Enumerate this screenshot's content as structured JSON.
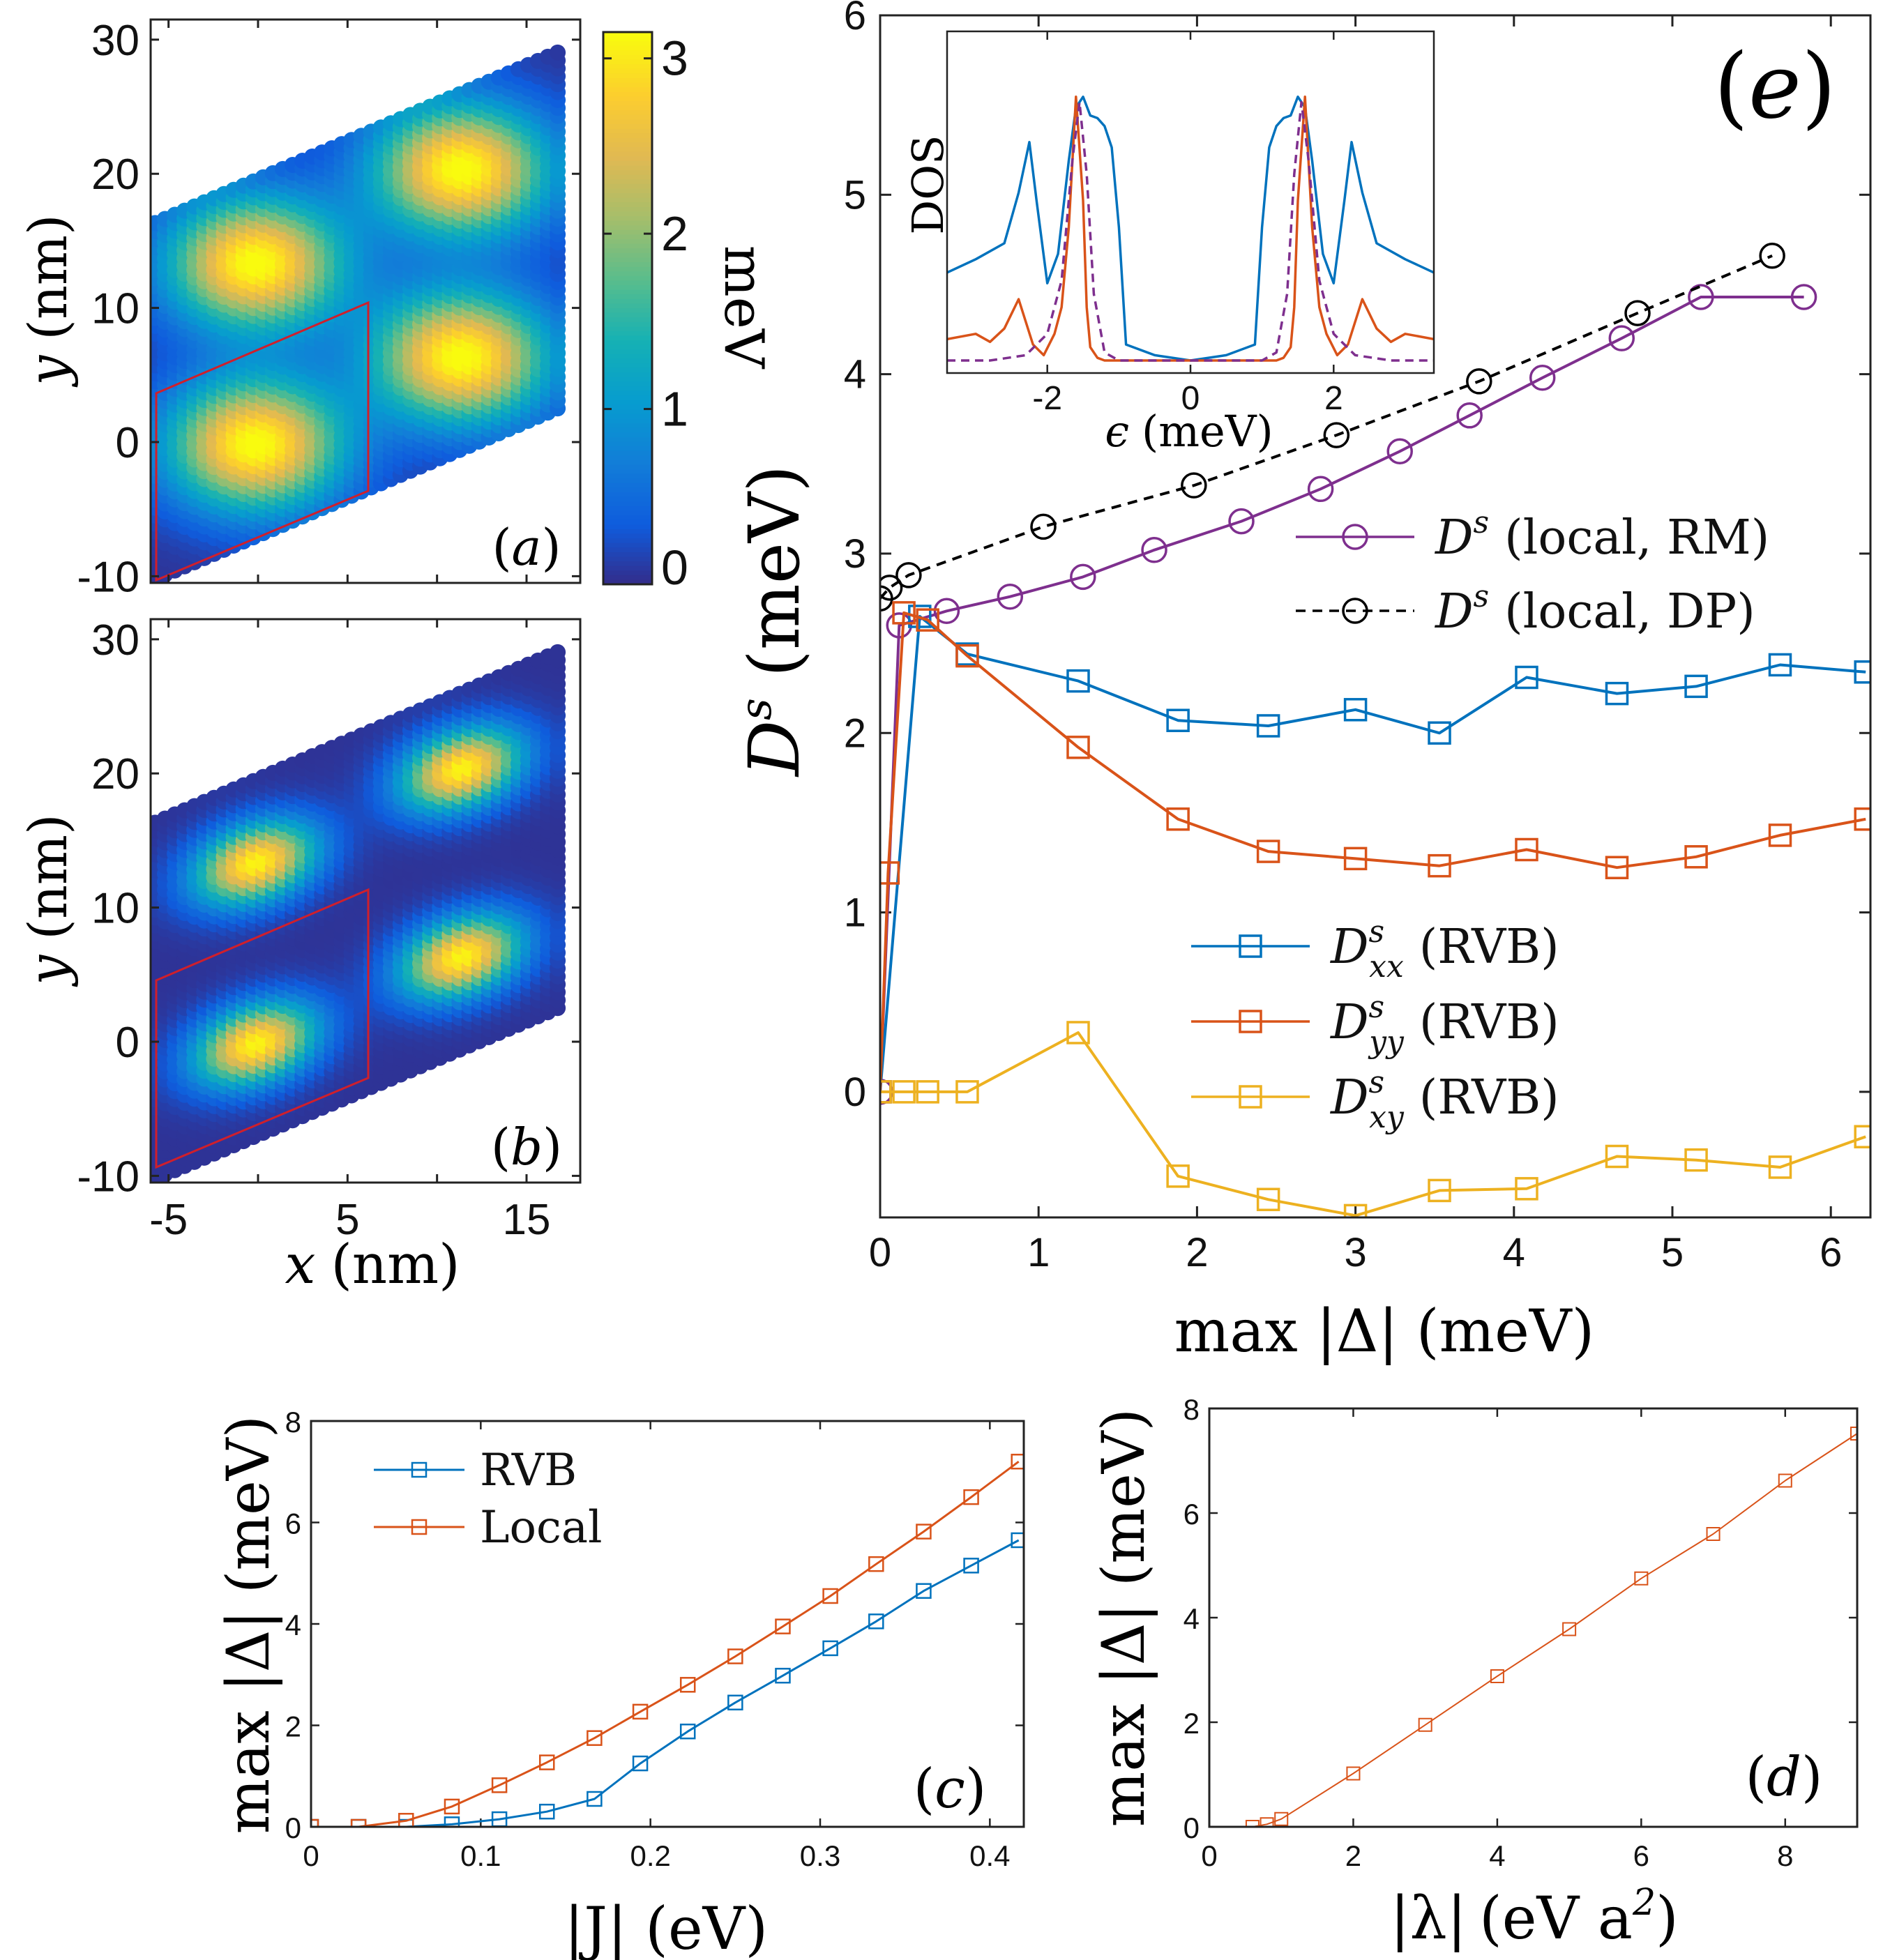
{
  "panels": {
    "a": {
      "letter": "a",
      "xticks": [],
      "yticks": [
        "30",
        "20",
        "10",
        "0",
        "-10"
      ],
      "ylabel_var": "y",
      "ylabel_unit": "(nm)",
      "colorbar": {
        "ticks": [
          "3",
          "2",
          "1",
          "0"
        ],
        "range": [
          0,
          3.15
        ],
        "label": "meV",
        "colormap": "parula"
      },
      "peaks": [
        {
          "x": 0,
          "y": 0,
          "amp": 3.15
        },
        {
          "x": 11.5,
          "y": 6.5,
          "amp": 3.15
        },
        {
          "x": 0,
          "y": 13.5,
          "amp": 3.15
        },
        {
          "x": 11.5,
          "y": 20.5,
          "amp": 3.15
        }
      ]
    },
    "b": {
      "letter": "b",
      "xticks": [
        "-5",
        "5",
        "15"
      ],
      "yticks": [
        "30",
        "20",
        "10",
        "0",
        "-10"
      ],
      "xlabel_var": "x",
      "xlabel_unit": "(nm)",
      "ylabel_var": "y",
      "ylabel_unit": "(nm)",
      "peaks": [
        {
          "x": 0,
          "y": 0,
          "amp": 3.15
        },
        {
          "x": 11.5,
          "y": 6.5,
          "amp": 3.15
        },
        {
          "x": 0,
          "y": 13.5,
          "amp": 3.15
        },
        {
          "x": 11.5,
          "y": 20.5,
          "amp": 3.15
        }
      ]
    },
    "c": {
      "letter": "c",
      "xlabel_main": "|J|",
      "xlabel_unit": "(eV)",
      "ylabel_main": "max |Δ|",
      "ylabel_unit": "(meV)"
    },
    "d": {
      "letter": "d",
      "xlabel_main": "|λ|",
      "xlabel_unit": "(eV a",
      "xlabel_sup": "2",
      "xlabel_close": ")",
      "ylabel_main": "max |Δ|",
      "ylabel_unit": "(meV)"
    },
    "e": {
      "letter": "e",
      "ylabel_main": "D",
      "ylabel_sup": "s",
      "ylabel_unit": "(meV)",
      "xlabel_main": "max |Δ|",
      "xlabel_unit": "(meV)",
      "inset": {
        "ylabel": "DOS",
        "xlabel_var": "ϵ",
        "xlabel_unit": "(meV)",
        "xticks": [
          "-2",
          "0",
          "2"
        ]
      }
    }
  },
  "chart_data": [
    {
      "id": "a",
      "type": "heatmap",
      "title": "",
      "xlabel": "",
      "ylabel": "y (nm)",
      "xlim": [
        -6,
        18
      ],
      "ylim": [
        -10.5,
        31.5
      ],
      "colorbar_label": "meV",
      "colorbar_range": [
        0,
        3.15
      ]
    },
    {
      "id": "b",
      "type": "heatmap",
      "title": "",
      "xlabel": "x (nm)",
      "ylabel": "y (nm)",
      "xlim": [
        -6,
        18
      ],
      "ylim": [
        -10.5,
        31.5
      ]
    },
    {
      "id": "e",
      "type": "line",
      "xlabel": "max |Δ| (meV)",
      "ylabel": "D^s (meV)",
      "xlim": [
        0,
        6.25
      ],
      "ylim": [
        -0.7,
        6
      ],
      "xticks": [
        0,
        1,
        2,
        3,
        4,
        5,
        6
      ],
      "yticks": [
        0,
        1,
        2,
        3,
        4,
        5,
        6
      ],
      "series": [
        {
          "name": "D^s (local, RM)",
          "label_main": "D",
          "label_sup": "s",
          "label_sub": "",
          "label_tail": "(local, RM)",
          "color": "#7e2f8e",
          "marker": "circle",
          "dash": "",
          "legend": 1,
          "x": [
            0,
            0.12,
            0.42,
            0.82,
            1.28,
            1.73,
            2.28,
            2.78,
            3.28,
            3.72,
            4.18,
            4.68,
            5.18,
            5.83
          ],
          "y": [
            0,
            2.6,
            2.68,
            2.76,
            2.87,
            3.02,
            3.18,
            3.36,
            3.57,
            3.77,
            3.98,
            4.2,
            4.43,
            4.43
          ]
        },
        {
          "name": "D^s (local, DP)",
          "label_main": "D",
          "label_sup": "s",
          "label_sub": "",
          "label_tail": "(local, DP)",
          "color": "#000000",
          "marker": "circle",
          "dash": "14,10",
          "legend": 1,
          "x": [
            0,
            0.06,
            0.18,
            1.03,
            1.98,
            2.88,
            3.78,
            4.78,
            5.63
          ],
          "y": [
            2.75,
            2.81,
            2.88,
            3.15,
            3.38,
            3.66,
            3.96,
            4.34,
            4.66
          ]
        },
        {
          "name": "D^s_xx (RVB)",
          "label_main": "D",
          "label_sup": "s",
          "label_sub": "xx",
          "label_tail": "(RVB)",
          "color": "#0072bd",
          "marker": "square",
          "dash": "",
          "legend": 2,
          "x": [
            0,
            0.25,
            0.55,
            1.25,
            1.88,
            2.45,
            3.0,
            3.53,
            4.08,
            4.65,
            5.15,
            5.68,
            6.22
          ],
          "y": [
            0,
            2.65,
            2.44,
            2.29,
            2.07,
            2.04,
            2.13,
            2.0,
            2.31,
            2.22,
            2.26,
            2.38,
            2.34
          ]
        },
        {
          "name": "D^s_yy (RVB)",
          "label_main": "D",
          "label_sup": "s",
          "label_sub": "yy",
          "label_tail": "(RVB)",
          "color": "#d95319",
          "marker": "square",
          "dash": "",
          "legend": 2,
          "x": [
            0,
            0.05,
            0.15,
            0.3,
            0.55,
            1.25,
            1.88,
            2.45,
            3.0,
            3.53,
            4.08,
            4.65,
            5.15,
            5.68,
            6.22
          ],
          "y": [
            0,
            1.22,
            2.67,
            2.63,
            2.43,
            1.92,
            1.52,
            1.34,
            1.3,
            1.26,
            1.35,
            1.25,
            1.31,
            1.43,
            1.52
          ]
        },
        {
          "name": "D^s_xy (RVB)",
          "label_main": "D",
          "label_sup": "s",
          "label_sub": "xy",
          "label_tail": "(RVB)",
          "color": "#edb120",
          "marker": "square",
          "dash": "",
          "legend": 2,
          "x": [
            0,
            0.15,
            0.3,
            0.55,
            1.25,
            1.88,
            2.45,
            3.0,
            3.53,
            4.08,
            4.65,
            5.15,
            5.68,
            6.22
          ],
          "y": [
            0,
            0,
            0,
            0,
            0.33,
            -0.47,
            -0.6,
            -0.69,
            -0.55,
            -0.54,
            -0.36,
            -0.38,
            -0.42,
            -0.25
          ]
        }
      ]
    },
    {
      "id": "e-inset",
      "type": "line",
      "xlabel": "ϵ (meV)",
      "ylabel": "DOS",
      "xlim": [
        -3.4,
        3.4
      ],
      "ylim": [
        0,
        1
      ],
      "series": [
        {
          "name": "blue",
          "color": "#0072bd",
          "dash": "",
          "x": [
            -3.4,
            -3.0,
            -2.6,
            -2.4,
            -2.25,
            -2.15,
            -2.0,
            -1.85,
            -1.7,
            -1.6,
            -1.5,
            -1.4,
            -1.3,
            -1.2,
            -1.1,
            -1.0,
            -0.9,
            -0.5,
            0,
            0.5,
            0.9,
            1.0,
            1.1,
            1.2,
            1.3,
            1.4,
            1.5,
            1.6,
            1.7,
            1.85,
            2.0,
            2.15,
            2.25,
            2.4,
            2.6,
            3.0,
            3.4
          ],
          "y": [
            0.33,
            0.38,
            0.44,
            0.63,
            0.82,
            0.6,
            0.29,
            0.4,
            0.75,
            0.95,
            0.99,
            0.92,
            0.91,
            0.88,
            0.8,
            0.5,
            0.06,
            0.02,
            0.0,
            0.02,
            0.06,
            0.5,
            0.8,
            0.88,
            0.91,
            0.92,
            0.99,
            0.95,
            0.75,
            0.4,
            0.29,
            0.6,
            0.82,
            0.63,
            0.44,
            0.38,
            0.33
          ]
        },
        {
          "name": "orange",
          "color": "#d95319",
          "dash": "",
          "x": [
            -3.4,
            -3.0,
            -2.8,
            -2.6,
            -2.4,
            -2.2,
            -2.05,
            -1.9,
            -1.8,
            -1.7,
            -1.6,
            -1.5,
            -1.45,
            -1.4,
            -1.3,
            -1.2,
            -0.9,
            0.9,
            1.2,
            1.3,
            1.4,
            1.45,
            1.5,
            1.6,
            1.7,
            1.8,
            1.9,
            2.05,
            2.2,
            2.4,
            2.6,
            2.8,
            3.0,
            3.4
          ],
          "y": [
            0.08,
            0.1,
            0.07,
            0.12,
            0.23,
            0.06,
            0.02,
            0.1,
            0.2,
            0.5,
            0.99,
            0.6,
            0.2,
            0.05,
            0.01,
            0.0,
            0.0,
            0.0,
            0.0,
            0.01,
            0.05,
            0.2,
            0.6,
            0.99,
            0.5,
            0.2,
            0.1,
            0.02,
            0.06,
            0.23,
            0.12,
            0.07,
            0.1,
            0.08
          ]
        },
        {
          "name": "purple",
          "color": "#7e2f8e",
          "dash": "12,8",
          "x": [
            -3.4,
            -2.8,
            -2.3,
            -2.0,
            -1.8,
            -1.65,
            -1.55,
            -1.45,
            -1.35,
            -1.2,
            -1.0,
            1.0,
            1.2,
            1.35,
            1.45,
            1.55,
            1.65,
            1.8,
            2.0,
            2.3,
            2.8,
            3.4
          ],
          "y": [
            0.0,
            0.0,
            0.02,
            0.1,
            0.3,
            0.75,
            0.97,
            0.7,
            0.25,
            0.03,
            0.0,
            0.0,
            0.03,
            0.25,
            0.7,
            0.97,
            0.75,
            0.3,
            0.1,
            0.02,
            0.0,
            0.0
          ]
        }
      ]
    },
    {
      "id": "c",
      "type": "line",
      "xlabel": "|J| (eV)",
      "ylabel": "max |Δ| (meV)",
      "xlim": [
        0,
        0.42
      ],
      "ylim": [
        0,
        8
      ],
      "xticks": [
        "0",
        "0.1",
        "0.2",
        "0.3",
        "0.4"
      ],
      "yticks": [
        "0",
        "2",
        "4",
        "6",
        "8"
      ],
      "series": [
        {
          "name": "RVB",
          "color": "#0072bd",
          "x": [
            0,
            0.028,
            0.056,
            0.083,
            0.111,
            0.139,
            0.167,
            0.194,
            0.222,
            0.25,
            0.278,
            0.306,
            0.333,
            0.361,
            0.389,
            0.417
          ],
          "y": [
            0,
            0,
            0,
            0.05,
            0.15,
            0.3,
            0.55,
            1.25,
            1.88,
            2.45,
            2.98,
            3.52,
            4.05,
            4.65,
            5.15,
            5.65
          ]
        },
        {
          "name": "Local",
          "color": "#d95319",
          "x": [
            0,
            0.028,
            0.056,
            0.083,
            0.111,
            0.139,
            0.167,
            0.194,
            0.222,
            0.25,
            0.278,
            0.306,
            0.333,
            0.361,
            0.389,
            0.417
          ],
          "y": [
            0,
            0,
            0.12,
            0.4,
            0.82,
            1.27,
            1.75,
            2.27,
            2.8,
            3.36,
            3.95,
            4.55,
            5.18,
            5.82,
            6.5,
            7.2
          ]
        }
      ]
    },
    {
      "id": "d",
      "type": "line",
      "xlabel": "|λ| (eV a^2)",
      "ylabel": "max |Δ| (meV)",
      "xlim": [
        0,
        9
      ],
      "ylim": [
        0,
        8
      ],
      "xticks": [
        "0",
        "2",
        "4",
        "6",
        "8"
      ],
      "yticks": [
        "0",
        "2",
        "4",
        "6",
        "8"
      ],
      "series": [
        {
          "name": "Local",
          "color": "#d95319",
          "x": [
            0.6,
            0.8,
            1.0,
            2.0,
            3.0,
            4.0,
            5.0,
            6.0,
            7.0,
            8.0,
            9.0
          ],
          "y": [
            0.0,
            0.05,
            0.15,
            1.02,
            1.95,
            2.88,
            3.78,
            4.75,
            5.6,
            6.62,
            7.52
          ]
        }
      ]
    }
  ]
}
